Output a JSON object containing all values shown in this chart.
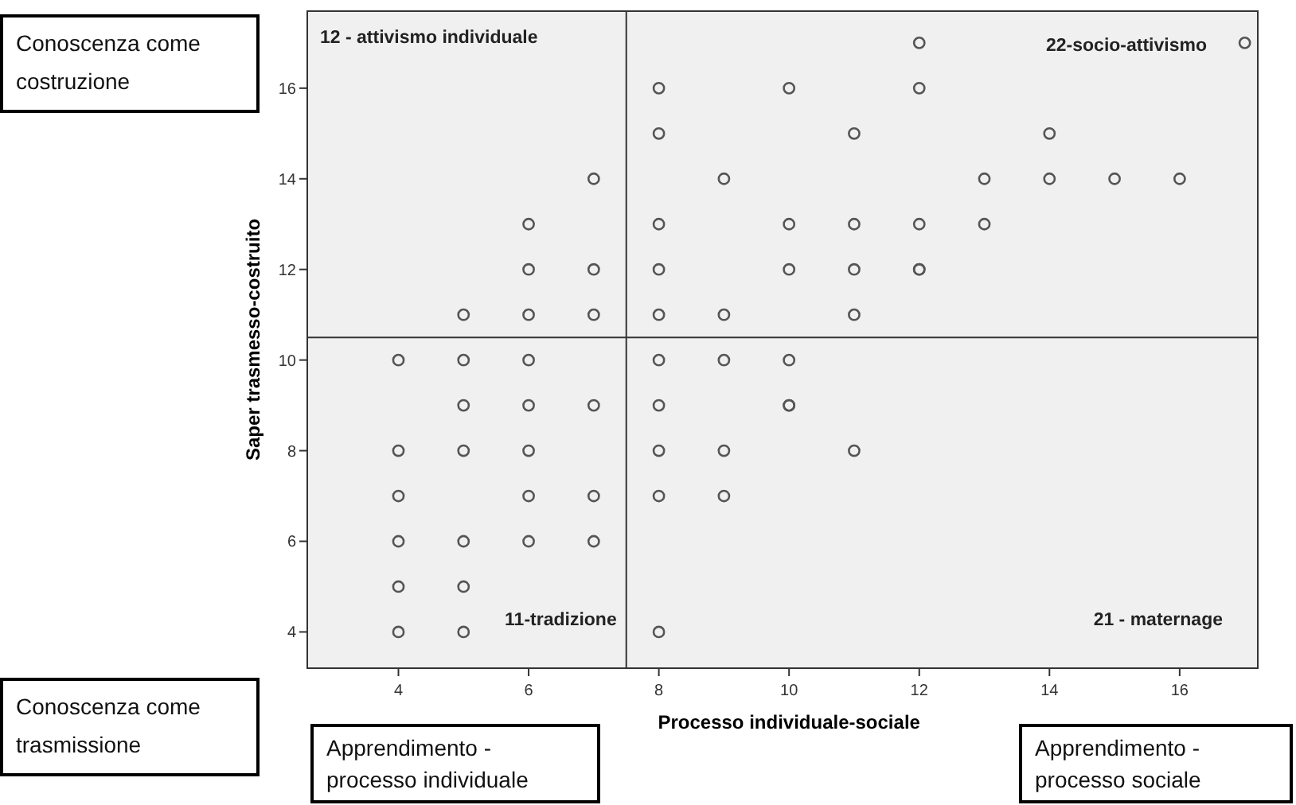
{
  "chart_data": {
    "type": "scatter",
    "xlabel": "Processo individuale-sociale",
    "ylabel": "Saper trasmesso-costruito",
    "xlim": [
      2.6,
      17.2
    ],
    "ylim": [
      3.2,
      17.7
    ],
    "xticks": [
      4,
      6,
      8,
      10,
      12,
      14,
      16
    ],
    "yticks": [
      4,
      6,
      8,
      10,
      12,
      14,
      16
    ],
    "grid": false,
    "marker": "circle",
    "series": [
      {
        "color": "#555555",
        "x": [
          4,
          4,
          4,
          4,
          4,
          4,
          5,
          5,
          5,
          5,
          5,
          5,
          5,
          6,
          6,
          6,
          6,
          6,
          6,
          6,
          6,
          7,
          7,
          7,
          7,
          7,
          7,
          8,
          8,
          8,
          8,
          8,
          8,
          8,
          8,
          8,
          8,
          9,
          9,
          9,
          9,
          9,
          10,
          10,
          10,
          10,
          10,
          10,
          11,
          11,
          11,
          11,
          11,
          12,
          12,
          12,
          12,
          12,
          13,
          13,
          14,
          14,
          15,
          16,
          17
        ],
        "values": [
          10,
          8,
          7,
          6,
          5,
          4,
          11,
          10,
          9,
          8,
          6,
          5,
          4,
          13,
          12,
          11,
          10,
          9,
          8,
          7,
          6,
          14,
          12,
          11,
          9,
          7,
          6,
          16,
          15,
          13,
          12,
          11,
          10,
          9,
          8,
          7,
          4,
          14,
          11,
          10,
          8,
          7,
          16,
          13,
          12,
          10,
          9,
          9,
          15,
          13,
          12,
          11,
          8,
          17,
          16,
          13,
          12,
          12,
          14,
          13,
          15,
          14,
          14,
          14,
          17
        ]
      }
    ],
    "ref_lines": [
      {
        "axis": "x",
        "value": 7.5,
        "color": "#333333"
      },
      {
        "axis": "y",
        "value": 10.5,
        "color": "#333333"
      }
    ],
    "annotations": [
      "12 - attivismo individuale",
      "22-socio-attivismo",
      "11-tradizione",
      "21 - maternage",
      "Conoscenza come costruzione",
      "Conoscenza come trasmissione",
      "Apprendimento - processo individuale",
      "Apprendimento - processo sociale"
    ]
  }
}
